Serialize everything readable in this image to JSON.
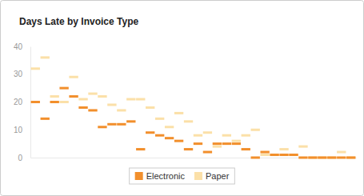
{
  "chart_data": {
    "type": "scatter",
    "title": "Days Late by Invoice Type",
    "categories": [
      null,
      null,
      null,
      null,
      null,
      null,
      null,
      null,
      null,
      null,
      null,
      null,
      null,
      null,
      null,
      null,
      null,
      null,
      null,
      null,
      null,
      null,
      null,
      null,
      null,
      null,
      null,
      null,
      null,
      null,
      null,
      null,
      null,
      null
    ],
    "series": [
      {
        "name": "Electronic",
        "color": "#f28f2c",
        "marker": "dash",
        "values": [
          20,
          14,
          20,
          25,
          22,
          18,
          17,
          11,
          12,
          12,
          13,
          3,
          9,
          8,
          7,
          6,
          3,
          5,
          2,
          5,
          5,
          5,
          3,
          0,
          2,
          1,
          1,
          1,
          0,
          0,
          0,
          0,
          0,
          0
        ]
      },
      {
        "name": "Paper",
        "color": "#fbe0a8",
        "marker": "dash",
        "values": [
          32,
          36,
          22,
          20,
          29,
          21,
          23,
          22,
          19,
          17,
          21,
          21,
          18,
          14,
          11,
          16,
          13,
          8,
          9,
          4,
          8,
          6,
          8,
          10,
          1,
          1,
          3,
          1,
          4,
          0,
          0,
          0,
          2,
          0
        ]
      }
    ],
    "ylim": [
      0,
      40
    ],
    "yticks": [
      0,
      10,
      20,
      30,
      40
    ],
    "grid": false,
    "legend": "bottom"
  }
}
